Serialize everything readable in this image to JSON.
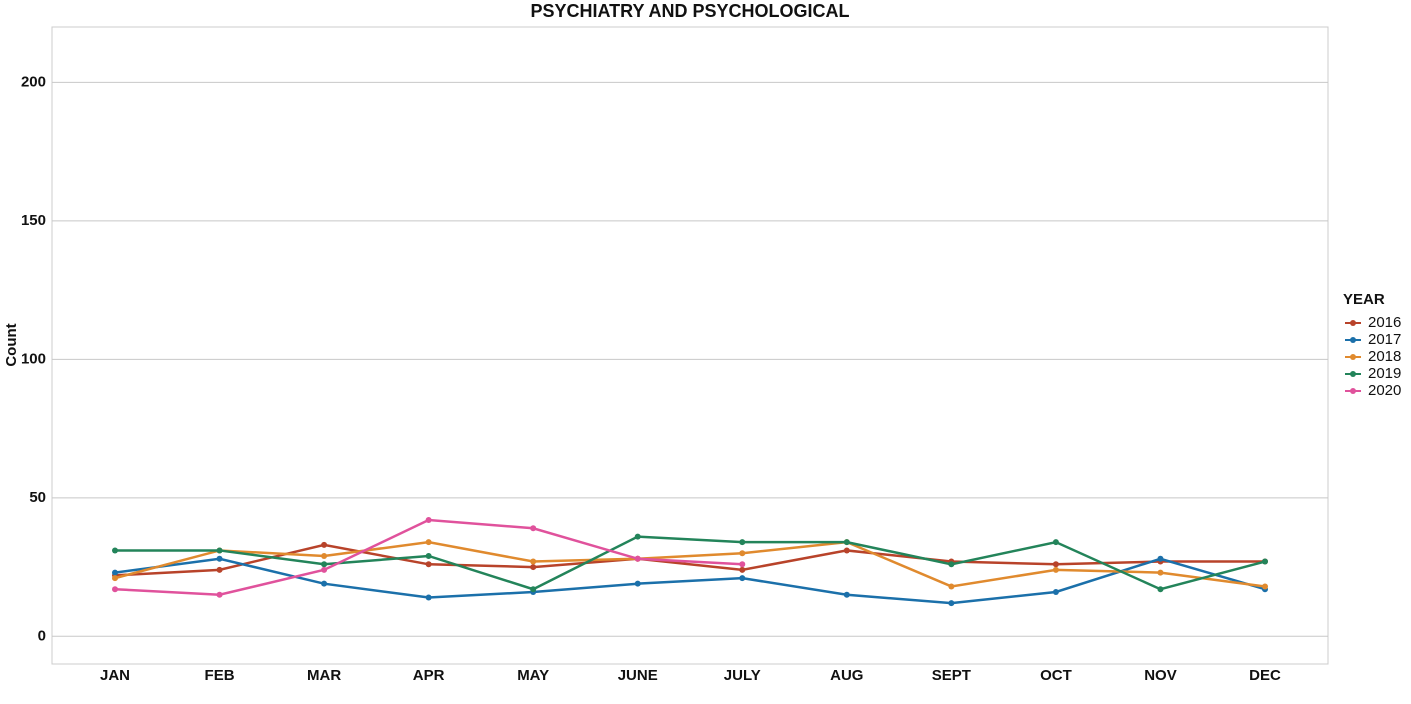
{
  "chart_data": {
    "type": "line",
    "title": "PSYCHIATRY AND PSYCHOLOGICAL",
    "y_label": "Count",
    "legend_title": "YEAR",
    "legend": "right",
    "grid": true,
    "categories": [
      "JAN",
      "FEB",
      "MAR",
      "APR",
      "MAY",
      "JUNE",
      "JULY",
      "AUG",
      "SEPT",
      "OCT",
      "NOV",
      "DEC"
    ],
    "ylim": [
      -10,
      220
    ],
    "yticks": [
      0,
      50,
      100,
      150,
      200
    ],
    "series": [
      {
        "name": "2016",
        "color": "#b8432a",
        "values": [
          22,
          24,
          33,
          26,
          25,
          28,
          24,
          31,
          27,
          26,
          27,
          27
        ]
      },
      {
        "name": "2017",
        "color": "#1b70aa",
        "values": [
          23,
          28,
          19,
          14,
          16,
          19,
          21,
          15,
          12,
          16,
          28,
          17
        ]
      },
      {
        "name": "2018",
        "color": "#e08a2e",
        "values": [
          21,
          31,
          29,
          34,
          27,
          28,
          30,
          34,
          18,
          24,
          23,
          18
        ]
      },
      {
        "name": "2019",
        "color": "#23845a",
        "values": [
          31,
          31,
          26,
          29,
          17,
          36,
          34,
          34,
          26,
          34,
          17,
          27
        ]
      },
      {
        "name": "2020",
        "color": "#e0529c",
        "values": [
          17,
          15,
          24,
          42,
          39,
          28,
          26,
          null,
          null,
          null,
          null,
          null
        ]
      }
    ]
  }
}
